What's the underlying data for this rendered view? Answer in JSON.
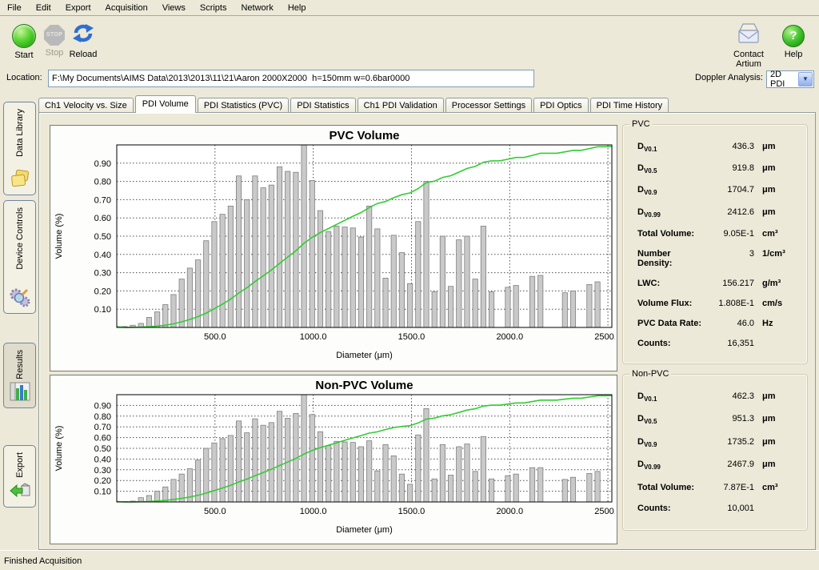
{
  "menu": {
    "items": [
      "File",
      "Edit",
      "Export",
      "Acquisition",
      "Views",
      "Scripts",
      "Network",
      "Help"
    ]
  },
  "toolbar": {
    "start_label": "Start",
    "stop_label": "Stop",
    "stop_icon_text": "STOP",
    "reload_label": "Reload",
    "contact_label": "Contact Artium",
    "help_label": "Help"
  },
  "location": {
    "label": "Location:",
    "value": "F:\\My Documents\\AIMS Data\\2013\\2013\\11\\21\\Aaron 2000X2000  h=150mm w=0.6bar0000"
  },
  "doppler": {
    "label": "Doppler Analysis:",
    "value": "2D PDI"
  },
  "sidebar": {
    "items": [
      {
        "label": "Data Library"
      },
      {
        "label": "Device Controls"
      },
      {
        "label": "Results"
      },
      {
        "label": "Export"
      }
    ],
    "active": "Results"
  },
  "tabs": [
    "Ch1 Velocity vs. Size",
    "PDI Volume",
    "PDI Statistics (PVC)",
    "PDI Statistics",
    "Ch1 PDI Validation",
    "Processor Settings",
    "PDI Optics",
    "PDI Time History"
  ],
  "active_tab": "PDI Volume",
  "stats_pvc": {
    "title": "PVC",
    "rows": [
      {
        "label": "D",
        "sub": "V0.1",
        "value": "436.3",
        "unit": "μm"
      },
      {
        "label": "D",
        "sub": "V0.5",
        "value": "919.8",
        "unit": "μm"
      },
      {
        "label": "D",
        "sub": "V0.9",
        "value": "1704.7",
        "unit": "μm"
      },
      {
        "label": "D",
        "sub": "V0.99",
        "value": "2412.6",
        "unit": "μm"
      },
      {
        "label": "Total Volume:",
        "sub": "",
        "value": "9.05E-1",
        "unit": "cm³"
      },
      {
        "label": "Number Density:",
        "sub": "",
        "value": "3",
        "unit": "1/cm³"
      },
      {
        "label": "LWC:",
        "sub": "",
        "value": "156.217",
        "unit": "g/m³"
      },
      {
        "label": "Volume Flux:",
        "sub": "",
        "value": "1.808E-1",
        "unit": "cm/s"
      },
      {
        "label": "PVC Data Rate:",
        "sub": "",
        "value": "46.0",
        "unit": "Hz"
      },
      {
        "label": "Counts:",
        "sub": "",
        "value": "16,351",
        "unit": ""
      }
    ]
  },
  "stats_nonpvc": {
    "title": "Non-PVC",
    "rows": [
      {
        "label": "D",
        "sub": "V0.1",
        "value": "462.3",
        "unit": "μm"
      },
      {
        "label": "D",
        "sub": "V0.5",
        "value": "951.3",
        "unit": "μm"
      },
      {
        "label": "D",
        "sub": "V0.9",
        "value": "1735.2",
        "unit": "μm"
      },
      {
        "label": "D",
        "sub": "V0.99",
        "value": "2467.9",
        "unit": "μm"
      },
      {
        "label": "Total Volume:",
        "sub": "",
        "value": "7.87E-1",
        "unit": "cm³"
      },
      {
        "label": "Counts:",
        "sub": "",
        "value": "10,001",
        "unit": ""
      }
    ]
  },
  "status": "Finished Acquisition",
  "chart_data": [
    {
      "type": "bar",
      "title": "PVC Volume",
      "xlabel": "Diameter (μm)",
      "ylabel": "Volume (%)",
      "xlim": [
        0,
        2520
      ],
      "ylim": [
        0,
        1.0
      ],
      "x_ticks": [
        "500.0",
        "1000.0",
        "1500.0",
        "2000.0",
        "2500.0"
      ],
      "y_ticks": [
        "0.10",
        "0.20",
        "0.30",
        "0.40",
        "0.50",
        "0.60",
        "0.70",
        "0.80",
        "0.90"
      ],
      "grid": "dotted",
      "x_start": 40,
      "x_step": 41.5,
      "bar_values": [
        0.005,
        0.012,
        0.022,
        0.055,
        0.085,
        0.125,
        0.18,
        0.265,
        0.325,
        0.37,
        0.475,
        0.58,
        0.62,
        0.665,
        0.83,
        0.7,
        0.83,
        0.765,
        0.78,
        0.88,
        0.855,
        0.85,
        1.0,
        0.805,
        0.64,
        0.525,
        0.555,
        0.55,
        0.545,
        0.495,
        0.665,
        0.54,
        0.27,
        0.505,
        0.41,
        0.24,
        0.58,
        0.8,
        0.195,
        0.5,
        0.225,
        0.48,
        0.5,
        0.265,
        0.555,
        0.195,
        0,
        0.22,
        0.23,
        0,
        0.28,
        0.285,
        0,
        0,
        0.19,
        0.2,
        0,
        0.235,
        0.25,
        0
      ],
      "cumulative_line": true,
      "colors": {
        "bar": "#c9c9c9",
        "bar_border": "#7f7f7f",
        "line": "#33cc33"
      }
    },
    {
      "type": "bar",
      "title": "Non-PVC Volume",
      "xlabel": "Diameter (μm)",
      "ylabel": "Volume (%)",
      "xlim": [
        0,
        2520
      ],
      "ylim": [
        0,
        1.0
      ],
      "x_ticks": [
        "500.0",
        "1000.0",
        "1500.0",
        "2000.0",
        "2500.0"
      ],
      "y_ticks": [
        "0.10",
        "0.20",
        "0.30",
        "0.40",
        "0.50",
        "0.60",
        "0.70",
        "0.80",
        "0.90"
      ],
      "grid": "dotted",
      "x_start": 40,
      "x_step": 41.5,
      "bar_values": [
        0.004,
        0.008,
        0.04,
        0.06,
        0.1,
        0.14,
        0.21,
        0.26,
        0.31,
        0.39,
        0.5,
        0.55,
        0.59,
        0.62,
        0.755,
        0.645,
        0.775,
        0.715,
        0.74,
        0.845,
        0.78,
        0.825,
        1.0,
        0.815,
        0.655,
        0.525,
        0.565,
        0.56,
        0.555,
        0.515,
        0.57,
        0.29,
        0.535,
        0.43,
        0.26,
        0.165,
        0.625,
        0.87,
        0.215,
        0.535,
        0.25,
        0.515,
        0.54,
        0.285,
        0.61,
        0.215,
        0,
        0.245,
        0.26,
        0,
        0.32,
        0.32,
        0,
        0,
        0.21,
        0.23,
        0,
        0.265,
        0.285,
        0
      ],
      "cumulative_line": true,
      "colors": {
        "bar": "#c9c9c9",
        "bar_border": "#7f7f7f",
        "line": "#33cc33"
      }
    }
  ]
}
